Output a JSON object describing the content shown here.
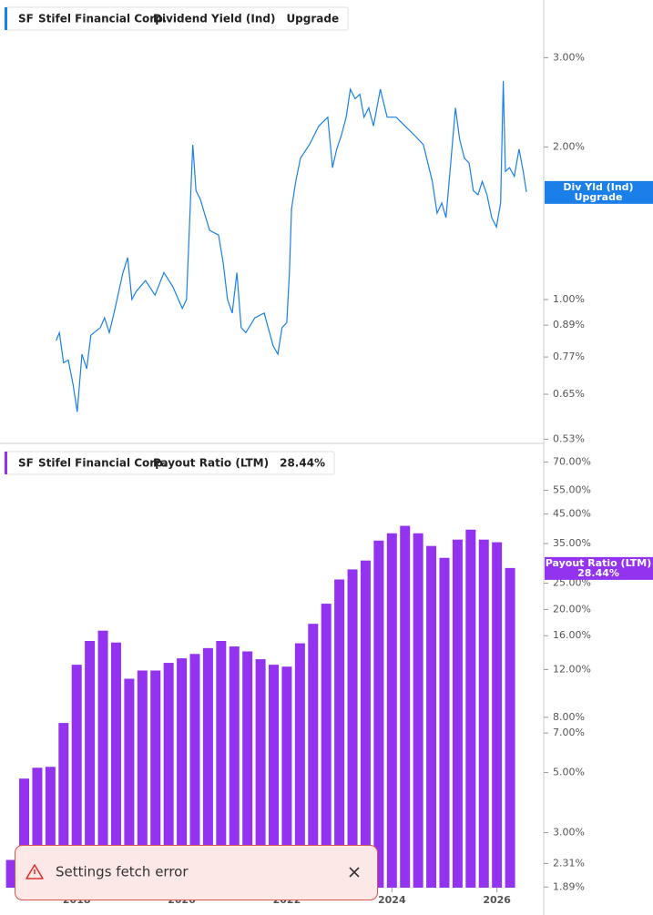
{
  "chart_data": [
    {
      "type": "line",
      "ticker": "SF",
      "company": "Stifel Financial Corp.",
      "tag": "Upgrade",
      "badge": [
        "Div Yld (Ind)",
        "Upgrade"
      ],
      "log_scale": true,
      "xlim": [
        2016.54,
        2026.89
      ],
      "ylim": [
        0.52,
        3.9
      ],
      "yticks": [
        {
          "value": 3,
          "label": "3.00%"
        },
        {
          "value": 2,
          "label": "2.00%"
        },
        {
          "value": 1,
          "label": "1.00%"
        },
        {
          "value": 0.89,
          "label": "0.89%"
        },
        {
          "value": 0.77,
          "label": "0.77%"
        },
        {
          "value": 0.65,
          "label": "0.65%"
        },
        {
          "value": 0.53,
          "label": "0.53%"
        }
      ],
      "x": [
        2017.61,
        2017.67,
        2017.75,
        2017.84,
        2017.93,
        2018.01,
        2018.1,
        2018.19,
        2018.27,
        2018.45,
        2018.53,
        2018.62,
        2018.71,
        2018.88,
        2018.97,
        2019.05,
        2019.14,
        2019.31,
        2019.49,
        2019.66,
        2019.83,
        2020.01,
        2020.09,
        2020.18,
        2020.21,
        2020.27,
        2020.35,
        2020.53,
        2020.7,
        2020.79,
        2020.87,
        2020.96,
        2021.05,
        2021.13,
        2021.22,
        2021.39,
        2021.57,
        2021.74,
        2021.83,
        2021.91,
        2022.0,
        2022.05,
        2022.09,
        2022.17,
        2022.26,
        2022.43,
        2022.61,
        2022.78,
        2022.87,
        2022.95,
        2023.04,
        2023.13,
        2023.21,
        2023.3,
        2023.39,
        2023.47,
        2023.56,
        2023.65,
        2023.78,
        2023.91,
        2024.08,
        2024.25,
        2024.43,
        2024.6,
        2024.77,
        2024.86,
        2024.95,
        2025.03,
        2025.12,
        2025.21,
        2025.29,
        2025.38,
        2025.47,
        2025.55,
        2025.64,
        2025.72,
        2025.81,
        2025.9,
        2025.99,
        2026.07,
        2026.12,
        2026.16,
        2026.24,
        2026.33,
        2026.42,
        2026.5,
        2026.56
      ],
      "series": [
        {
          "name": "Dividend Yield (Ind)",
          "color": "#1a7fe8",
          "values": [
            0.83,
            0.86,
            0.75,
            0.76,
            0.68,
            0.6,
            0.78,
            0.73,
            0.85,
            0.88,
            0.92,
            0.86,
            0.94,
            1.13,
            1.21,
            1.0,
            1.04,
            1.09,
            1.02,
            1.13,
            1.06,
            0.96,
            1.0,
            1.71,
            2.02,
            1.64,
            1.58,
            1.37,
            1.34,
            1.18,
            1.0,
            0.94,
            1.13,
            0.88,
            0.86,
            0.92,
            0.94,
            0.81,
            0.78,
            0.88,
            0.9,
            1.13,
            1.51,
            1.71,
            1.9,
            2.02,
            2.2,
            2.29,
            1.82,
            1.98,
            2.11,
            2.29,
            2.6,
            2.49,
            2.54,
            2.29,
            2.39,
            2.2,
            2.6,
            2.29,
            2.29,
            2.2,
            2.11,
            2.02,
            1.71,
            1.48,
            1.55,
            1.45,
            1.86,
            2.39,
            2.07,
            1.9,
            1.86,
            1.64,
            1.61,
            1.71,
            1.61,
            1.45,
            1.39,
            1.55,
            2.7,
            1.79,
            1.82,
            1.75,
            1.98,
            1.79,
            1.63
          ]
        }
      ]
    },
    {
      "type": "bar",
      "ticker": "SF",
      "company": "Stifel Financial Corp.",
      "tag": "28.44%",
      "badge": [
        "Payout Ratio (LTM)",
        "28.44%"
      ],
      "log_scale": true,
      "xlim": [
        2016.54,
        2026.89
      ],
      "ylim": [
        1.88,
        82
      ],
      "xticks": [
        2018,
        2020,
        2022,
        2024,
        2026
      ],
      "yticks": [
        {
          "value": 70,
          "label": "70.00%"
        },
        {
          "value": 55,
          "label": "55.00%"
        },
        {
          "value": 45,
          "label": "45.00%"
        },
        {
          "value": 35,
          "label": "35.00%"
        },
        {
          "value": 25,
          "label": "25.00%"
        },
        {
          "value": 20,
          "label": "20.00%"
        },
        {
          "value": 16,
          "label": "16.00%"
        },
        {
          "value": 12,
          "label": "12.00%"
        },
        {
          "value": 8,
          "label": "8.00%"
        },
        {
          "value": 7,
          "label": "7.00%"
        },
        {
          "value": 5,
          "label": "5.00%"
        },
        {
          "value": 3,
          "label": "3.00%"
        },
        {
          "value": 2.31,
          "label": "2.31%"
        },
        {
          "value": 1.89,
          "label": "1.89%"
        }
      ],
      "x": [
        2016.75,
        2017,
        2017.25,
        2017.5,
        2017.75,
        2018,
        2018.25,
        2018.5,
        2018.75,
        2019,
        2019.25,
        2019.5,
        2019.75,
        2020,
        2020.25,
        2020.5,
        2020.75,
        2021,
        2021.25,
        2021.5,
        2021.75,
        2022,
        2022.25,
        2022.5,
        2022.75,
        2023,
        2023.25,
        2023.5,
        2023.75,
        2024,
        2024.25,
        2024.5,
        2024.75,
        2025,
        2025.25,
        2025.5,
        2025.75,
        2026,
        2026.25
      ],
      "series": [
        {
          "name": "Payout Ratio (LTM)",
          "color": "#9333f0",
          "values": [
            2.38,
            4.75,
            5.21,
            5.25,
            7.62,
            12.5,
            15.3,
            16.7,
            15.1,
            11.1,
            11.9,
            11.9,
            12.7,
            13.2,
            13.7,
            14.4,
            15.3,
            14.6,
            14.0,
            13.1,
            12.5,
            12.3,
            15.0,
            17.7,
            21.0,
            25.8,
            28.1,
            30.3,
            35.9,
            38.2,
            40.7,
            38.2,
            34.3,
            31.0,
            36.2,
            39.4,
            36.2,
            35.4,
            28.44
          ]
        }
      ]
    }
  ],
  "toast": {
    "message": "Settings fetch error"
  }
}
